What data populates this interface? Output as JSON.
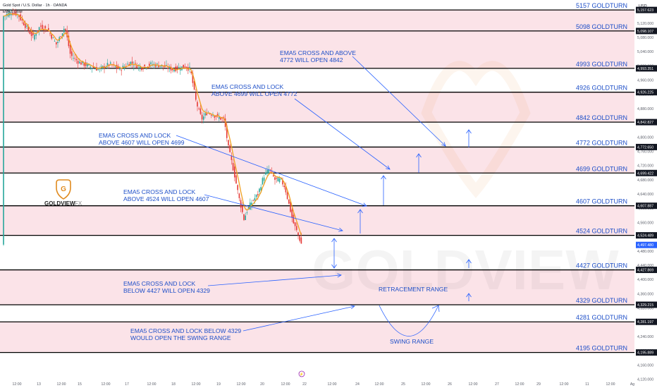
{
  "header": {
    "symbol": "Gold Spot / U.S. Dollar · 1h · OANDA",
    "indicator": "EMA 5 close"
  },
  "currency": "USD",
  "brand": {
    "name": "GOLDVIEW",
    "suffix": "FX",
    "watermark": "GOLDVIEW"
  },
  "colors": {
    "band": "#fbe3e8",
    "level_text": "#1e4fc8",
    "up": "#26a69a",
    "down": "#e53935",
    "ema": "#f0a020",
    "arrow": "#2a62ff",
    "logo": "#e08a1e"
  },
  "chart_data": {
    "type": "candlestick",
    "ylim": [
      4115,
      5185
    ],
    "y_ticks": [
      5120,
      5080,
      5040,
      5000,
      4960,
      4920,
      4880,
      4840,
      4800,
      4760,
      4720,
      4680,
      4640,
      4600,
      4560,
      4480,
      4440,
      4400,
      4360,
      4320,
      4280,
      4240,
      4200,
      4160,
      4120
    ],
    "y_tick_labels": [
      "5,120.000",
      "5,080.000",
      "5,040.000",
      "5,000.000",
      "4,960.000",
      "4,920.000",
      "4,880.000",
      "4,840.000",
      "4,800.000",
      "4,760.000",
      "4,720.000",
      "4,680.000",
      "4,640.000",
      "4,600.000",
      "4,560.000",
      "4,480.000",
      "4,440.000",
      "4,400.000",
      "4,360.000",
      "4,320.000",
      "4,280.000",
      "4,240.000",
      "4,200.000",
      "4,160.000",
      "4,120.000"
    ],
    "x_labels": [
      "12:00",
      "13",
      "12:00",
      "15",
      "12:00",
      "17",
      "12:00",
      "18",
      "12:00",
      "19",
      "12:00",
      "20",
      "12:00",
      "22",
      "12:00",
      "24",
      "12:00",
      "25",
      "12:00",
      "26",
      "12:00",
      "27",
      "12:00",
      "29",
      "12:00",
      "11",
      "12:00",
      "Ag"
    ],
    "x_label_pos": [
      24,
      55,
      87,
      113,
      150,
      180,
      215,
      246,
      278,
      310,
      342,
      372,
      405,
      432,
      471,
      507,
      538,
      572,
      604,
      638,
      671,
      705,
      737,
      764,
      800,
      833,
      866,
      897
    ],
    "levels": [
      {
        "value": 5157,
        "label": "5157 GOLDTURN",
        "price": "5,157.623"
      },
      {
        "value": 5098,
        "label": "5098 GOLDTURN",
        "price": "5,098.107"
      },
      {
        "value": 4993,
        "label": "4993 GOLDTURN",
        "price": "4,993.351"
      },
      {
        "value": 4926,
        "label": "4926 GOLDTURN",
        "price": "4,926.225"
      },
      {
        "value": 4842,
        "label": "4842 GOLDTURN",
        "price": "4,842.827"
      },
      {
        "value": 4772,
        "label": "4772 GOLDTURN",
        "price": "4,772.650"
      },
      {
        "value": 4699,
        "label": "4699 GOLDTURN",
        "price": "4,699.422"
      },
      {
        "value": 4607,
        "label": "4607 GOLDTURN",
        "price": "4,607.887"
      },
      {
        "value": 4524,
        "label": "4524 GOLDTURN",
        "price": "4,524.489"
      },
      {
        "value": 4427,
        "label": "4427 GOLDTURN",
        "price": "4,427.869"
      },
      {
        "value": 4329,
        "label": "4329 GOLDTURN",
        "price": "4,329.215"
      },
      {
        "value": 4281,
        "label": "4281 GOLDTURN",
        "price": "4,281.197"
      },
      {
        "value": 4195,
        "label": "4195 GOLDTURN",
        "price": "4,195.889"
      }
    ],
    "current_price": {
      "value": 4497,
      "label": "4,497.480"
    },
    "bands": [
      [
        5098,
        5157
      ],
      [
        4993,
        5098
      ],
      [
        4842,
        4926
      ],
      [
        4699,
        4772
      ],
      [
        4524,
        4607
      ],
      [
        4329,
        4427
      ],
      [
        4195,
        4281
      ]
    ],
    "price_path": [
      [
        5,
        5140
      ],
      [
        15,
        5150
      ],
      [
        25,
        5145
      ],
      [
        35,
        5115
      ],
      [
        47,
        5080
      ],
      [
        57,
        5112
      ],
      [
        68,
        5100
      ],
      [
        80,
        5060
      ],
      [
        92,
        5110
      ],
      [
        100,
        5030
      ],
      [
        112,
        5010
      ],
      [
        125,
        5000
      ],
      [
        140,
        4990
      ],
      [
        155,
        5005
      ],
      [
        170,
        4990
      ],
      [
        185,
        5010
      ],
      [
        200,
        4995
      ],
      [
        215,
        5005
      ],
      [
        230,
        5000
      ],
      [
        245,
        4990
      ],
      [
        262,
        4998
      ],
      [
        270,
        4990
      ],
      [
        278,
        4900
      ],
      [
        286,
        4850
      ],
      [
        294,
        4870
      ],
      [
        300,
        4865
      ],
      [
        310,
        4855
      ],
      [
        318,
        4848
      ],
      [
        324,
        4770
      ],
      [
        332,
        4700
      ],
      [
        340,
        4620
      ],
      [
        346,
        4570
      ],
      [
        352,
        4600
      ],
      [
        358,
        4620
      ],
      [
        366,
        4640
      ],
      [
        374,
        4690
      ],
      [
        382,
        4710
      ],
      [
        390,
        4680
      ],
      [
        398,
        4680
      ],
      [
        404,
        4660
      ],
      [
        410,
        4610
      ],
      [
        416,
        4560
      ],
      [
        422,
        4530
      ],
      [
        428,
        4497
      ]
    ],
    "annotations": [
      {
        "lines": [
          "EMA5 CROSS AND ABOVE",
          "4772 WILL OPEN 4842"
        ],
        "value": 4842
      },
      {
        "lines": [
          "EMA5 CROSS AND LOCK",
          "ABOVE 4699 WILL OPEN 4772"
        ],
        "value": 4772
      },
      {
        "lines": [
          "EMA5 CROSS AND LOCK",
          "ABOVE  4607 WILL OPEN 4699"
        ],
        "value": 4699
      },
      {
        "lines": [
          "EMA5 CROSS AND LOCK",
          "ABOVE 4524 WILL OPEN 4607"
        ],
        "value": 4607
      },
      {
        "lines": [
          "EMA5 CROSS AND LOCK",
          "BELOW 4427 WILL OPEN 4329"
        ],
        "value": 4329
      },
      {
        "lines": [
          "EMA5 CROSS AND LOCK BELOW 4329",
          "WOULD OPEN THE SWING RANGE"
        ],
        "value": 4195
      }
    ],
    "range_labels": [
      {
        "text": "RETRACEMENT RANGE",
        "value": 4380
      },
      {
        "text": "SWING RANGE",
        "value": 4240
      }
    ]
  }
}
